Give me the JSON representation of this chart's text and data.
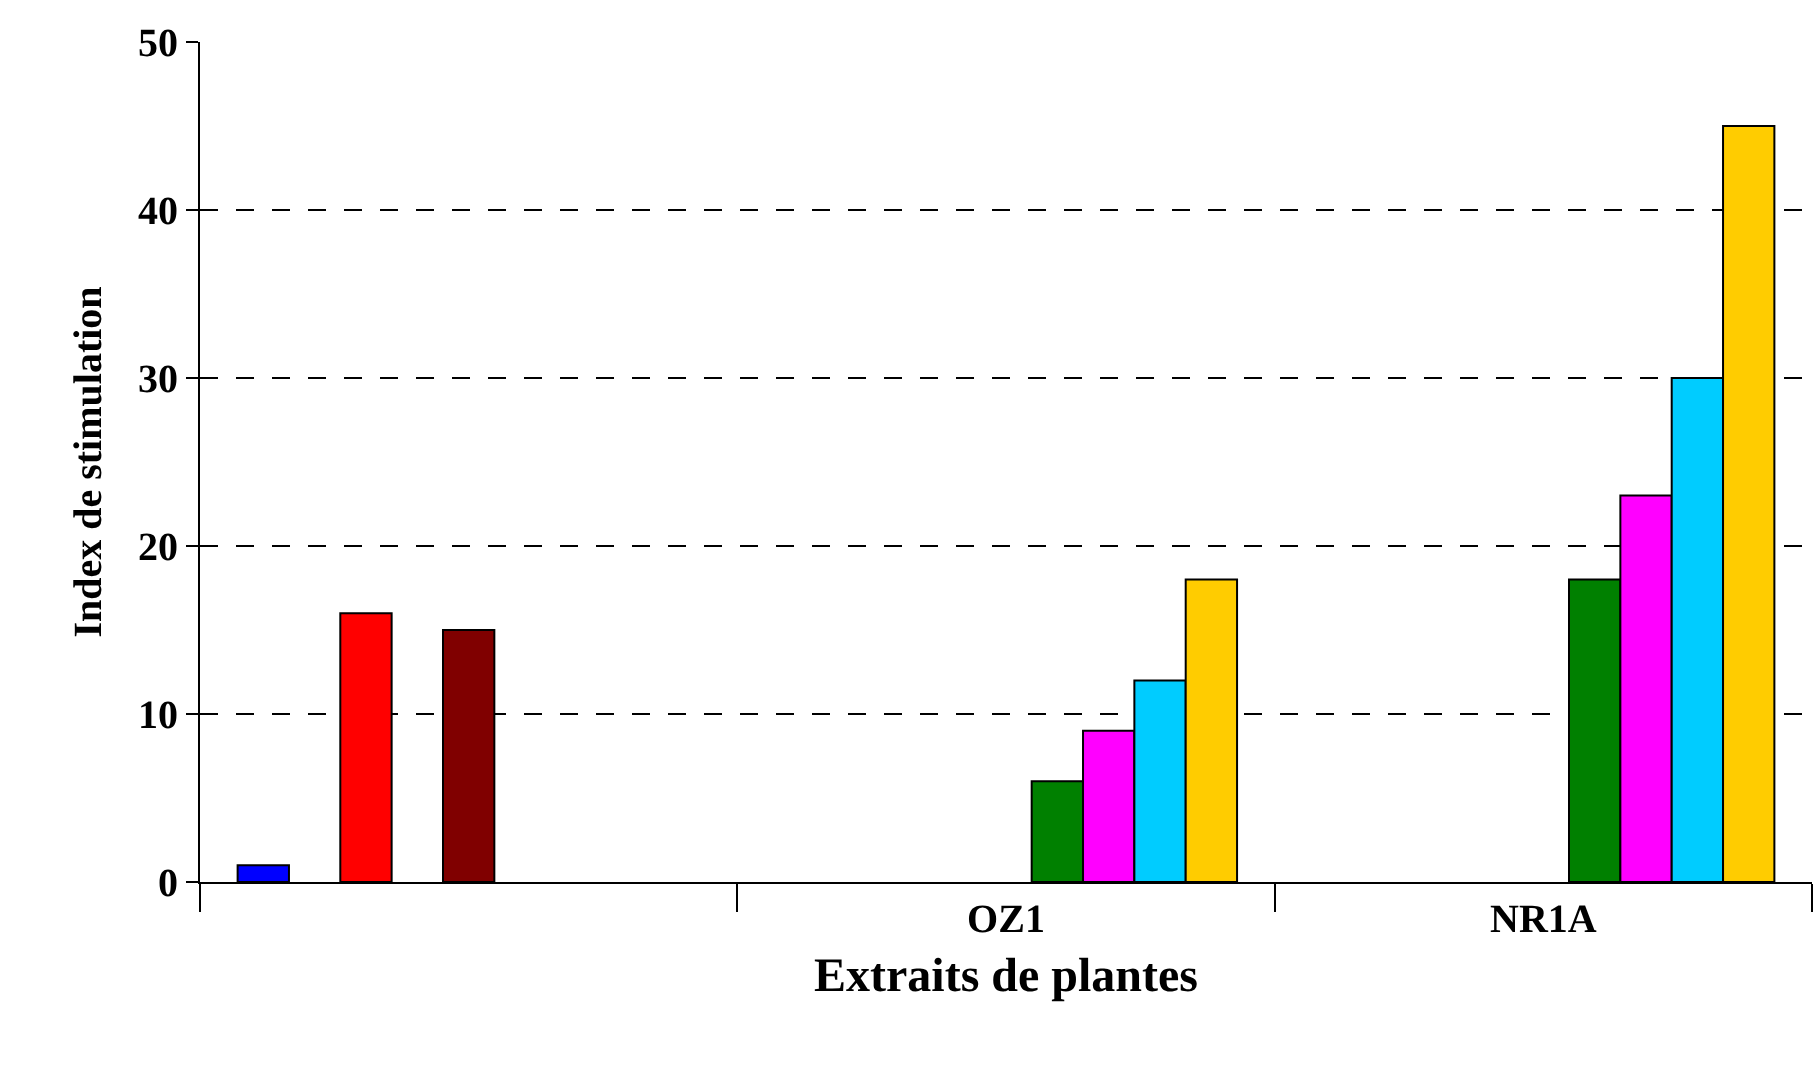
{
  "chart_data": {
    "type": "bar",
    "xlabel": "Extraits de plantes",
    "ylabel": "Index de stimulation",
    "categories": [
      null,
      "OZ1",
      "NR1A"
    ],
    "series": [
      {
        "color": "#0000ff",
        "values": [
          1,
          null,
          null
        ]
      },
      {
        "values": [
          null,
          null,
          null
        ]
      },
      {
        "color": "#ff0000",
        "values": [
          16,
          null,
          null
        ]
      },
      {
        "values": [
          null,
          null,
          null
        ]
      },
      {
        "color": "#800000",
        "values": [
          15,
          null,
          null
        ]
      },
      {
        "color": "#008000",
        "values": [
          null,
          6,
          18
        ]
      },
      {
        "color": "#ff00ff",
        "values": [
          null,
          9,
          23
        ]
      },
      {
        "color": "#00ccff",
        "values": [
          null,
          12,
          30
        ]
      },
      {
        "color": "#ffcc00",
        "values": [
          null,
          18,
          45
        ]
      }
    ],
    "ylim": [
      0,
      50
    ],
    "yticks": [
      0,
      10,
      20,
      30,
      40,
      50
    ],
    "grid": "y"
  }
}
